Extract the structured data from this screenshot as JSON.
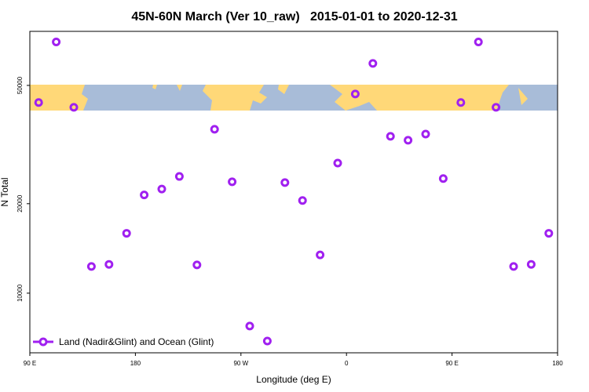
{
  "chart_data": {
    "type": "scatter",
    "title": "45N-60N March (Ver 10_raw)   2015-01-01 to 2020-12-31",
    "xlabel": "Longitude (deg E)",
    "ylabel": "N Total",
    "log_y": true,
    "legend": "bottom-left",
    "xlim": [
      90,
      540
    ],
    "xticks": [
      {
        "value": 90,
        "label": "90 E"
      },
      {
        "value": 180,
        "label": "180"
      },
      {
        "value": 270,
        "label": "90 W"
      },
      {
        "value": 360,
        "label": "0"
      },
      {
        "value": 450,
        "label": "90 E"
      },
      {
        "value": 540,
        "label": "180"
      }
    ],
    "ylim": [
      6300,
      76000
    ],
    "yticks": [
      10000,
      20000,
      50000
    ],
    "series": [
      {
        "name": "Land (Nadir&Glint) and Ocean (Glint)",
        "color": "#a020f0",
        "x": [
          97.5,
          112.5,
          127.5,
          142.5,
          157.5,
          172.5,
          187.5,
          202.5,
          217.5,
          232.5,
          247.5,
          262.5,
          277.5,
          292.5,
          307.5,
          322.5,
          337.5,
          352.5,
          367.5,
          382.5,
          397.5,
          412.5,
          427.5,
          442.5,
          457.5,
          472.5,
          487.5,
          502.5,
          517.5,
          532.5
        ],
        "values": [
          43800,
          70000,
          42200,
          12300,
          12500,
          15900,
          21400,
          22400,
          24700,
          12450,
          35600,
          23700,
          7750,
          6900,
          23550,
          20500,
          13450,
          27400,
          46800,
          59300,
          33700,
          32700,
          34300,
          24300,
          43800,
          70000,
          42200,
          12300,
          12500,
          15900
        ]
      }
    ]
  }
}
